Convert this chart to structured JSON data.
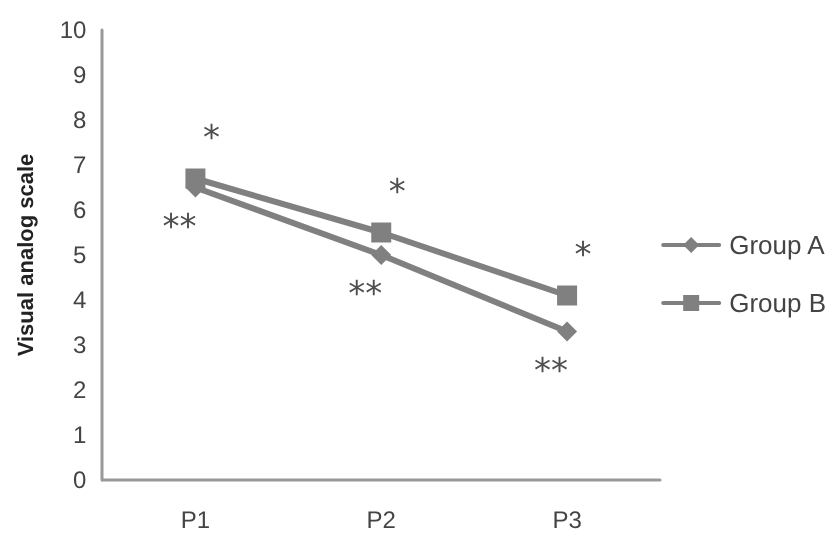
{
  "chart_data": {
    "type": "line",
    "ylabel": "Visual analog scale",
    "categories": [
      "P1",
      "P2",
      "P3"
    ],
    "series": [
      {
        "name": "Group A",
        "color": "#808080",
        "marker": "diamond",
        "values": [
          6.5,
          5.0,
          3.3
        ]
      },
      {
        "name": "Group B",
        "color": "#808080",
        "marker": "square",
        "values": [
          6.7,
          5.5,
          4.1
        ]
      }
    ],
    "ylim": [
      0,
      10
    ],
    "yticks": [
      0,
      1,
      2,
      3,
      4,
      5,
      6,
      7,
      8,
      9,
      10
    ],
    "grid": false,
    "legend": "right",
    "annotations": [
      {
        "text": "*",
        "x": "P1",
        "y": 6.7
      },
      {
        "text": "**",
        "x": "P1",
        "y": 6.5
      },
      {
        "text": "*",
        "x": "P2",
        "y": 5.5
      },
      {
        "text": "**",
        "x": "P2",
        "y": 5.0
      },
      {
        "text": "*",
        "x": "P3",
        "y": 4.1
      },
      {
        "text": "**",
        "x": "P3",
        "y": 3.3
      }
    ]
  }
}
